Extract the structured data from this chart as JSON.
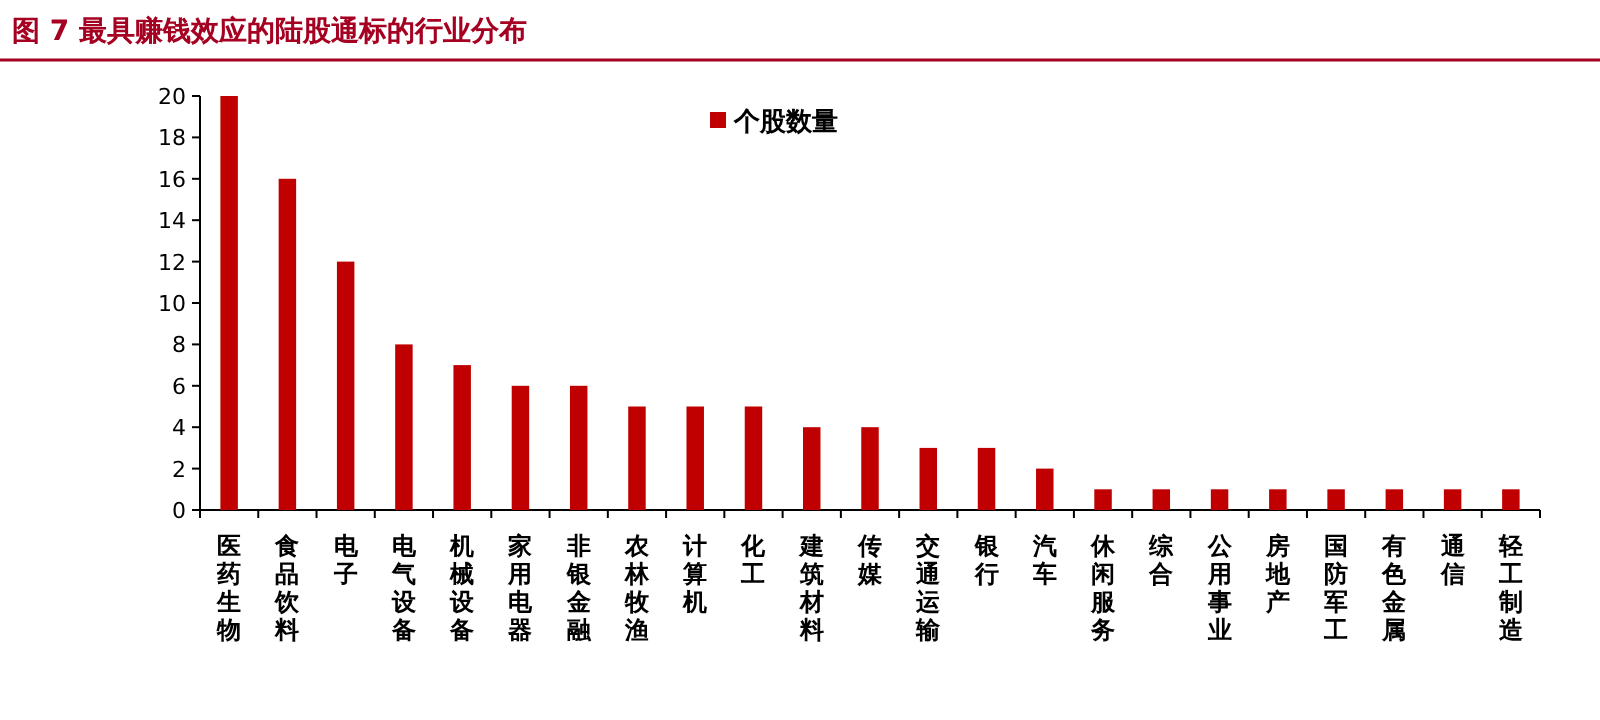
{
  "chart_data": {
    "type": "bar",
    "title": "图 7   最具赚钱效应的陆股通标的行业分布",
    "categories": [
      "医药生物",
      "食品饮料",
      "电子",
      "电气设备",
      "机械设备",
      "家用电器",
      "非银金融",
      "农林牧渔",
      "计算机",
      "化工",
      "建筑材料",
      "传媒",
      "交通运输",
      "银行",
      "汽车",
      "休闲服务",
      "综合",
      "公用事业",
      "房地产",
      "国防军工",
      "有色金属",
      "通信",
      "轻工制造"
    ],
    "series": [
      {
        "name": "个股数量",
        "color": "#c00000",
        "values": [
          20,
          16,
          12,
          8,
          7,
          6,
          6,
          5,
          5,
          5,
          4,
          4,
          3,
          3,
          2,
          1,
          1,
          1,
          1,
          1,
          1,
          1,
          1
        ]
      }
    ],
    "ylim": [
      0,
      20
    ],
    "yticks": [
      0,
      2,
      4,
      6,
      8,
      10,
      12,
      14,
      16,
      18,
      20
    ],
    "legend": "top",
    "grid": false
  }
}
